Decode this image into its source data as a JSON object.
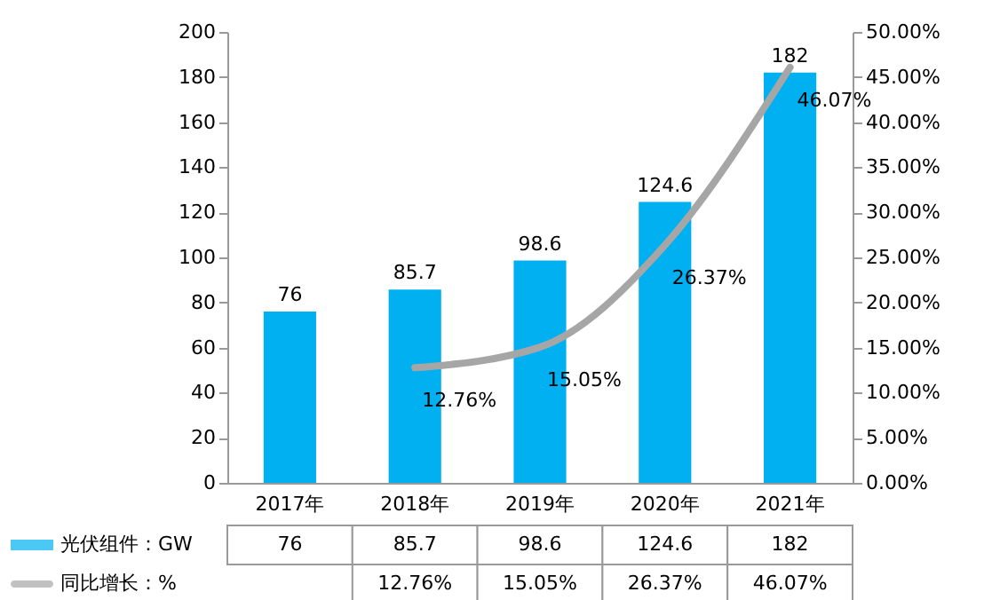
{
  "chart_data": {
    "type": "bar",
    "categories": [
      "2017年",
      "2018年",
      "2019年",
      "2020年",
      "2021年"
    ],
    "series": [
      {
        "name": "光伏组件：GW",
        "type": "bar",
        "color": "#00b0f0",
        "values": [
          76,
          85.7,
          98.6,
          124.6,
          182
        ],
        "value_labels": [
          "76",
          "85.7",
          "98.6",
          "124.6",
          "182"
        ]
      },
      {
        "name": "同比增长：%",
        "type": "line",
        "axis": "y2",
        "color": "#a6a6a6",
        "values": [
          null,
          12.76,
          15.05,
          26.37,
          46.07
        ],
        "value_labels": [
          null,
          "12.76%",
          "15.05%",
          "26.37%",
          "46.07%"
        ]
      }
    ],
    "ylim": [
      0,
      200
    ],
    "yticks": [
      0,
      20,
      40,
      60,
      80,
      100,
      120,
      140,
      160,
      180,
      200
    ],
    "y2lim": [
      0,
      50
    ],
    "y2ticks": [
      {
        "value": 0,
        "label": "0.00%"
      },
      {
        "value": 5,
        "label": "5.00%"
      },
      {
        "value": 10,
        "label": "10.00%"
      },
      {
        "value": 15,
        "label": "15.00%"
      },
      {
        "value": 20,
        "label": "20.00%"
      },
      {
        "value": 25,
        "label": "25.00%"
      },
      {
        "value": 30,
        "label": "30.00%"
      },
      {
        "value": 35,
        "label": "35.00%"
      },
      {
        "value": 40,
        "label": "40.00%"
      },
      {
        "value": 45,
        "label": "45.00%"
      },
      {
        "value": 50,
        "label": "50.00%"
      }
    ],
    "data_labels": true,
    "legend": "bottom",
    "grid": false
  }
}
